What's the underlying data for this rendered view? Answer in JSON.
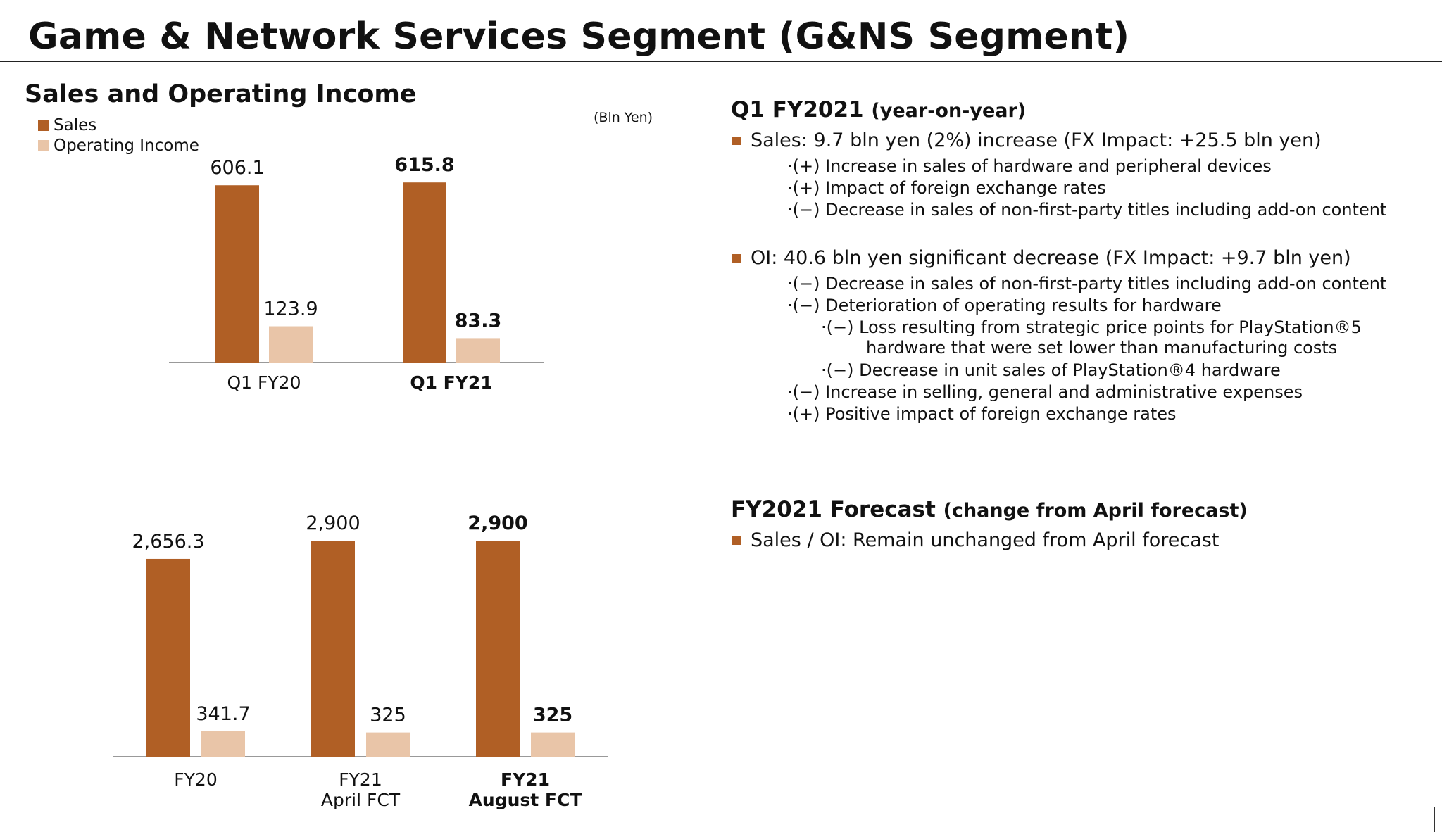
{
  "page": {
    "title": "Game & Network Services Segment (G&NS Segment)",
    "chart_title": "Sales and Operating Income",
    "unit_note": "(Bln Yen)"
  },
  "legend": [
    {
      "label": "Sales",
      "color": "#b05f25"
    },
    {
      "label": "Operating Income",
      "color": "#e9c5a8"
    }
  ],
  "colors": {
    "sales": "#b05f25",
    "oi": "#e9c5a8",
    "bullet": "#b05f25"
  },
  "chart_data": [
    {
      "type": "bar",
      "categories": [
        [
          "Q1 FY20"
        ],
        [
          "Q1 FY21"
        ]
      ],
      "category_bold": [
        false,
        true
      ],
      "series": [
        {
          "name": "Sales",
          "values": [
            606.1,
            615.8
          ],
          "labels": [
            "606.1",
            "615.8"
          ]
        },
        {
          "name": "Operating Income",
          "values": [
            123.9,
            83.3
          ],
          "labels": [
            "123.9",
            "83.3"
          ]
        }
      ],
      "ylim": [
        0,
        650
      ]
    },
    {
      "type": "bar",
      "categories": [
        [
          "FY20"
        ],
        [
          "FY21",
          "April FCT"
        ],
        [
          "FY21",
          "August FCT"
        ]
      ],
      "category_bold": [
        false,
        false,
        true
      ],
      "series": [
        {
          "name": "Sales",
          "values": [
            2656.3,
            2900,
            2900
          ],
          "labels": [
            "2,656.3",
            "2,900",
            "2,900"
          ]
        },
        {
          "name": "Operating Income",
          "values": [
            341.7,
            325,
            325
          ],
          "labels": [
            "341.7",
            "325",
            "325"
          ]
        }
      ],
      "ylim": [
        0,
        3100
      ]
    }
  ],
  "q1": {
    "heading": "Q1 FY2021",
    "heading_sub": "(year-on-year)",
    "sales_bullet": "Sales: 9.7 bln yen (2%) increase (FX Impact: +25.5 bln yen)",
    "sales_points": [
      "·(+) Increase in sales of hardware and peripheral devices",
      "·(+) Impact of foreign exchange rates",
      "·(−) Decrease in sales of non-first-party titles including add-on content"
    ],
    "oi_bullet": "OI: 40.6 bln yen significant decrease (FX Impact: +9.7 bln yen)",
    "oi_points": [
      "·(−) Decrease in sales of non-first-party titles including add-on content",
      "·(−) Deterioration of operating results for hardware",
      "·(−) Loss resulting from strategic price points for PlayStation®5",
      "hardware that were set lower than manufacturing costs",
      "·(−) Decrease in unit sales of PlayStation®4 hardware",
      "·(−) Increase in selling, general and administrative expenses",
      "·(+) Positive impact of foreign exchange rates"
    ]
  },
  "forecast": {
    "heading": "FY2021 Forecast",
    "heading_sub": "(change from April forecast)",
    "bullet": "Sales / OI: Remain unchanged from April forecast"
  }
}
